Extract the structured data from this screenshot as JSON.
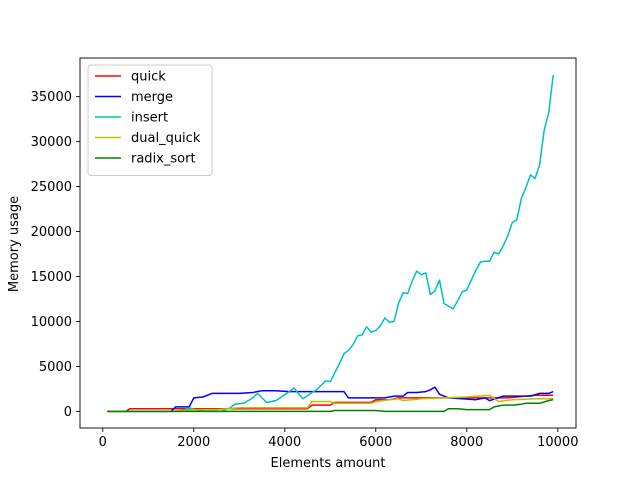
{
  "chart_data": {
    "type": "line",
    "title": "",
    "xlabel": "Elements amount",
    "ylabel": "Memory usage",
    "xlim": [
      -500,
      10400
    ],
    "ylim": [
      -1850,
      39300
    ],
    "xticks": [
      0,
      2000,
      4000,
      6000,
      8000,
      10000
    ],
    "xtick_labels": [
      "0",
      "2000",
      "4000",
      "6000",
      "8000",
      "10000"
    ],
    "yticks": [
      0,
      5000,
      10000,
      15000,
      20000,
      25000,
      30000,
      35000
    ],
    "ytick_labels": [
      "0",
      "5000",
      "10000",
      "15000",
      "20000",
      "25000",
      "30000",
      "35000"
    ],
    "grid": false,
    "legend_position": "top-left",
    "series": [
      {
        "name": "quick",
        "color": "#ff0000",
        "x": [
          100,
          500,
          600,
          1000,
          1500,
          2000,
          2500,
          3000,
          3500,
          4000,
          4500,
          4600,
          5000,
          5100,
          5500,
          5900,
          6000,
          6300,
          6500,
          6700,
          7000,
          7500,
          8000,
          8500,
          8900,
          9500,
          9900
        ],
        "y": [
          0,
          0,
          300,
          300,
          300,
          300,
          300,
          300,
          300,
          300,
          300,
          700,
          700,
          1000,
          1000,
          1000,
          1300,
          1300,
          1500,
          1500,
          1500,
          1500,
          1500,
          1500,
          1500,
          1800,
          1800
        ]
      },
      {
        "name": "merge",
        "color": "#0000ff",
        "x": [
          100,
          1500,
          1600,
          1900,
          2000,
          2200,
          2400,
          3000,
          3300,
          3500,
          3800,
          4100,
          4300,
          4600,
          5000,
          5300,
          5400,
          5600,
          5800,
          6000,
          6200,
          6400,
          6600,
          6700,
          6900,
          7100,
          7200,
          7300,
          7400,
          7600,
          7900,
          8200,
          8400,
          8500,
          8800,
          9000,
          9200,
          9400,
          9600,
          9800,
          9900
        ],
        "y": [
          0,
          0,
          500,
          500,
          1500,
          1600,
          2000,
          2000,
          2100,
          2300,
          2300,
          2200,
          2200,
          2200,
          2200,
          2200,
          1500,
          1500,
          1500,
          1500,
          1500,
          1700,
          1700,
          2100,
          2100,
          2200,
          2400,
          2700,
          1900,
          1500,
          1400,
          1300,
          1500,
          1200,
          1700,
          1700,
          1700,
          1700,
          2000,
          2000,
          2200
        ]
      },
      {
        "name": "insert",
        "color": "#00bfbf",
        "x": [
          100,
          1700,
          1900,
          2100,
          2300,
          2600,
          2800,
          2900,
          3100,
          3300,
          3400,
          3600,
          3800,
          3900,
          4100,
          4200,
          4400,
          4600,
          4700,
          4900,
          5000,
          5200,
          5300,
          5400,
          5500,
          5600,
          5700,
          5800,
          5900,
          6000,
          6100,
          6200,
          6300,
          6400,
          6500,
          6600,
          6700,
          6800,
          6900,
          7000,
          7100,
          7200,
          7300,
          7400,
          7500,
          7700,
          7800,
          7900,
          8000,
          8100,
          8200,
          8300,
          8400,
          8500,
          8600,
          8700,
          8800,
          8900,
          9000,
          9100,
          9200,
          9300,
          9400,
          9500,
          9600,
          9700,
          9800,
          9900
        ],
        "y": [
          0,
          0,
          400,
          100,
          0,
          0,
          400,
          800,
          900,
          1500,
          2000,
          1000,
          1200,
          1500,
          2200,
          2600,
          1400,
          2100,
          2400,
          3400,
          3300,
          5300,
          6400,
          6800,
          7400,
          8400,
          8500,
          9400,
          8800,
          9000,
          9500,
          10400,
          9900,
          10000,
          12000,
          13200,
          13100,
          14500,
          15600,
          15200,
          15400,
          13000,
          13400,
          14600,
          12000,
          11400,
          12300,
          13300,
          13500,
          14600,
          15700,
          16600,
          16700,
          16700,
          17700,
          17500,
          18400,
          19500,
          21000,
          21300,
          23700,
          24900,
          26300,
          25900,
          27400,
          31200,
          33200,
          37400
        ]
      },
      {
        "name": "dual_quick",
        "color": "#bfbf00",
        "x": [
          100,
          1500,
          2000,
          2500,
          3000,
          3500,
          4000,
          4500,
          4600,
          5000,
          5100,
          5500,
          5900,
          6000,
          6300,
          6500,
          6600,
          7000,
          7500,
          8000,
          8500,
          8700,
          9000,
          9500,
          9900
        ],
        "y": [
          0,
          0,
          200,
          200,
          400,
          400,
          400,
          400,
          1100,
          1100,
          900,
          900,
          900,
          1100,
          1300,
          1400,
          1200,
          1400,
          1500,
          1600,
          1800,
          1100,
          1300,
          1400,
          1400
        ]
      },
      {
        "name": "radix_sort",
        "color": "#008000",
        "x": [
          100,
          4500,
          5000,
          5100,
          5500,
          6000,
          6200,
          6500,
          7000,
          7500,
          7600,
          7800,
          8000,
          8500,
          8600,
          8800,
          9000,
          9200,
          9300,
          9600,
          9800,
          9900
        ],
        "y": [
          0,
          0,
          0,
          100,
          100,
          100,
          0,
          0,
          0,
          0,
          300,
          300,
          200,
          200,
          500,
          700,
          700,
          800,
          900,
          900,
          1200,
          1300
        ]
      }
    ]
  }
}
